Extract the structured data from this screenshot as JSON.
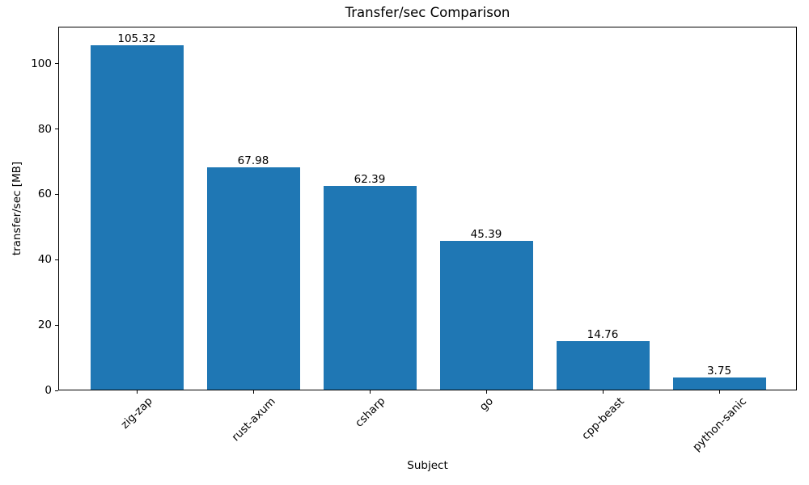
{
  "chart_data": {
    "type": "bar",
    "title": "Transfer/sec Comparison",
    "xlabel": "Subject",
    "ylabel": "transfer/sec [MB]",
    "categories": [
      "zig-zap",
      "rust-axum",
      "csharp",
      "go",
      "cpp-beast",
      "python-sanic"
    ],
    "values": [
      105.32,
      67.98,
      62.39,
      45.39,
      14.76,
      3.75
    ],
    "bar_value_labels": [
      "105.32",
      "67.98",
      "62.39",
      "45.39",
      "14.76",
      "3.75"
    ],
    "yticks": [
      0,
      20,
      40,
      60,
      80,
      100
    ],
    "ylim": [
      0,
      110.8
    ],
    "bar_color": "#1f77b4",
    "axis_color": "#000000",
    "background_color": "#ffffff",
    "grid": false,
    "legend": null,
    "xtick_rotation_deg": 45
  }
}
